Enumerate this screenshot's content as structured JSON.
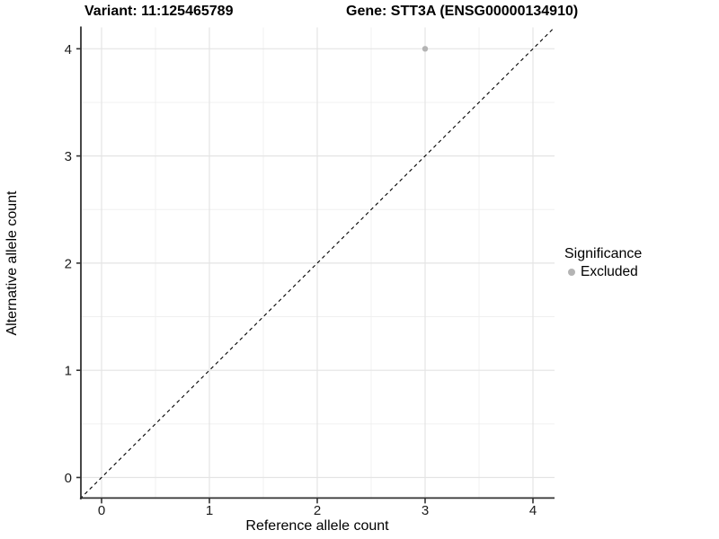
{
  "header": {
    "variant_title": "Variant: 11:125465789",
    "gene_title": "Gene: STT3A (ENSG00000134910)"
  },
  "axes": {
    "x_label": "Reference allele count",
    "y_label": "Alternative allele count"
  },
  "legend": {
    "title": "Significance",
    "items": [
      {
        "label": "Excluded",
        "color": "#b4b4b4"
      }
    ]
  },
  "colors": {
    "background": "#ffffff",
    "grid_major": "#e4e4e4",
    "grid_minor": "#f0f0f0",
    "axis_line": "#333333",
    "tick_mark": "#333333",
    "tick_text": "#1a1a1a",
    "identity_line": "#000000",
    "point": "#b4b4b4"
  },
  "chart_data": {
    "type": "scatter",
    "title": "Variant: 11:125465789 | Gene: STT3A (ENSG00000134910)",
    "xlabel": "Reference allele count",
    "ylabel": "Alternative allele count",
    "xlim": [
      -0.2,
      4.2
    ],
    "ylim": [
      -0.2,
      4.2
    ],
    "x_ticks": [
      0,
      1,
      2,
      3,
      4
    ],
    "y_ticks": [
      0,
      1,
      2,
      3,
      4
    ],
    "x_minor_ticks": [
      0.5,
      1.5,
      2.5,
      3.5
    ],
    "y_minor_ticks": [
      0.5,
      1.5,
      2.5,
      3.5
    ],
    "grid": true,
    "legend_position": "right",
    "legend_title": "Significance",
    "series": [
      {
        "name": "Excluded",
        "color": "#b4b4b4",
        "point_radius": 3.2,
        "points": [
          {
            "x": 3,
            "y": 4
          }
        ]
      }
    ],
    "reference_line": {
      "kind": "identity y=x",
      "from": [
        -0.2,
        -0.2
      ],
      "to": [
        4.2,
        4.2
      ],
      "style": "dashed",
      "color": "#000000"
    }
  }
}
